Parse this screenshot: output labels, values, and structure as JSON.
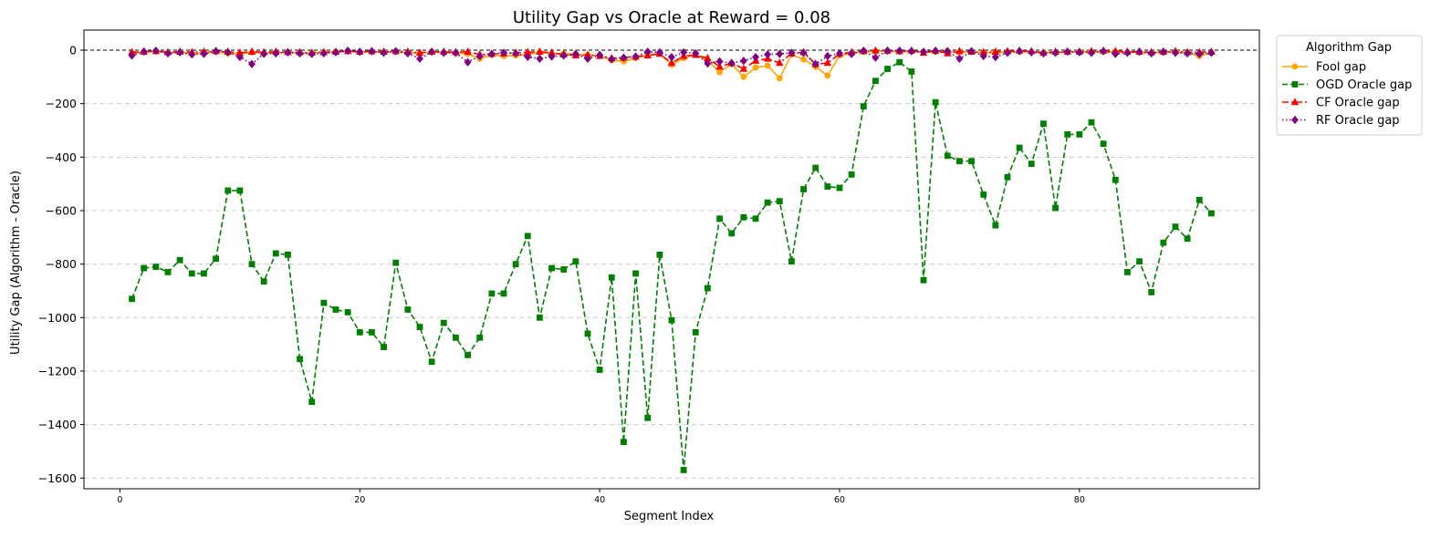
{
  "chart_data": {
    "type": "line",
    "title": "Utility Gap vs Oracle at Reward = 0.08",
    "xlabel": "Segment Index",
    "ylabel": "Utility Gap (Algorithm - Oracle)",
    "xlim": [
      -3,
      95
    ],
    "ylim": [
      -1640,
      75
    ],
    "xticks": [
      0,
      20,
      40,
      60,
      80
    ],
    "yticks": [
      0,
      -200,
      -400,
      -600,
      -800,
      -1000,
      -1200,
      -1400,
      -1600
    ],
    "grid": "horizontal dashed",
    "reference_line": 0,
    "legend": {
      "title": "Algorithm Gap",
      "placement": "outside-right"
    },
    "x": [
      1,
      2,
      3,
      4,
      5,
      6,
      7,
      8,
      9,
      10,
      11,
      12,
      13,
      14,
      15,
      16,
      17,
      18,
      19,
      20,
      21,
      22,
      23,
      24,
      25,
      26,
      27,
      28,
      29,
      30,
      31,
      32,
      33,
      34,
      35,
      36,
      37,
      38,
      39,
      40,
      41,
      42,
      43,
      44,
      45,
      46,
      47,
      48,
      49,
      50,
      51,
      52,
      53,
      54,
      55,
      56,
      57,
      58,
      59,
      60,
      61,
      62,
      63,
      64,
      65,
      66,
      67,
      68,
      69,
      70,
      71,
      72,
      73,
      74,
      75,
      76,
      77,
      78,
      79,
      80,
      81,
      82,
      83,
      84,
      85,
      86,
      87,
      88,
      89,
      90,
      91
    ],
    "series": [
      {
        "name": "Fool gap",
        "color": "#FFA500",
        "dash": "solid",
        "marker": "circle",
        "values": [
          -12,
          -6,
          -4,
          -10,
          -8,
          -14,
          -10,
          -6,
          -12,
          -14,
          -8,
          -12,
          -10,
          -8,
          -12,
          -10,
          -8,
          -6,
          -4,
          -8,
          -6,
          -8,
          -6,
          -10,
          -12,
          -6,
          -8,
          -10,
          -14,
          -32,
          -18,
          -22,
          -20,
          -16,
          -8,
          -14,
          -12,
          -16,
          -18,
          -20,
          -38,
          -42,
          -30,
          -18,
          -12,
          -55,
          -30,
          -16,
          -40,
          -82,
          -52,
          -100,
          -65,
          -58,
          -105,
          -16,
          -35,
          -62,
          -95,
          -20,
          -12,
          -6,
          -4,
          -4,
          -6,
          -4,
          -8,
          -6,
          -4,
          -8,
          -6,
          -10,
          -10,
          -6,
          -6,
          -6,
          -8,
          -10,
          -6,
          -6,
          -6,
          -6,
          -6,
          -8,
          -8,
          -10,
          -8,
          -6,
          -10,
          -22,
          -10
        ]
      },
      {
        "name": "OGD Oracle gap",
        "color": "#008000",
        "dash": "dashed",
        "marker": "square",
        "values": [
          -930,
          -815,
          -810,
          -830,
          -785,
          -835,
          -835,
          -780,
          -525,
          -525,
          -800,
          -865,
          -760,
          -765,
          -1155,
          -1315,
          -945,
          -970,
          -980,
          -1055,
          -1055,
          -1110,
          -795,
          -970,
          -1035,
          -1165,
          -1020,
          -1075,
          -1140,
          -1075,
          -910,
          -910,
          -800,
          -695,
          -1000,
          -815,
          -820,
          -790,
          -1060,
          -1195,
          -850,
          -1465,
          -835,
          -1375,
          -765,
          -1010,
          -1570,
          -1055,
          -890,
          -630,
          -685,
          -625,
          -630,
          -570,
          -565,
          -790,
          -520,
          -440,
          -510,
          -515,
          -465,
          -210,
          -115,
          -70,
          -45,
          -80,
          -860,
          -195,
          -395,
          -415,
          -415,
          -540,
          -655,
          -475,
          -365,
          -425,
          -275,
          -590,
          -315,
          -315,
          -270,
          -350,
          -485,
          -830,
          -790,
          -905,
          -720,
          -660,
          -705,
          -560,
          -610
        ]
      },
      {
        "name": "CF Oracle gap",
        "color": "#FF0000",
        "dash": "dashdot",
        "marker": "triangle",
        "values": [
          -8,
          -6,
          -4,
          -8,
          -6,
          -8,
          -6,
          -4,
          -6,
          -10,
          -6,
          -8,
          -6,
          -8,
          -8,
          -10,
          -8,
          -6,
          -4,
          -6,
          -4,
          -6,
          -4,
          -6,
          -10,
          -6,
          -6,
          -8,
          -6,
          -16,
          -14,
          -12,
          -10,
          -8,
          -6,
          -10,
          -16,
          -20,
          -18,
          -22,
          -30,
          -28,
          -24,
          -20,
          -14,
          -48,
          -22,
          -18,
          -30,
          -62,
          -48,
          -70,
          -40,
          -32,
          -48,
          -12,
          -8,
          -52,
          -48,
          -14,
          -8,
          -4,
          -2,
          -2,
          -4,
          -2,
          -10,
          -2,
          -12,
          -4,
          -6,
          -8,
          -6,
          -4,
          -2,
          -4,
          -10,
          -6,
          -6,
          -6,
          -4,
          -2,
          -4,
          -6,
          -6,
          -8,
          -6,
          -4,
          -8,
          -8,
          -6
        ]
      },
      {
        "name": "RF Oracle gap",
        "color": "#800080",
        "dash": "dotted",
        "marker": "diamond",
        "values": [
          -20,
          -5,
          -2,
          -12,
          -8,
          -16,
          -14,
          -4,
          -8,
          -26,
          -52,
          -14,
          -12,
          -8,
          -12,
          -14,
          -12,
          -8,
          -2,
          -6,
          -4,
          -10,
          -4,
          -12,
          -32,
          -6,
          -10,
          -10,
          -45,
          -22,
          -14,
          -10,
          -12,
          -25,
          -32,
          -24,
          -20,
          -14,
          -32,
          -18,
          -34,
          -28,
          -24,
          -6,
          -8,
          -26,
          -8,
          -12,
          -50,
          -42,
          -48,
          -40,
          -26,
          -16,
          -14,
          -10,
          -10,
          -52,
          -22,
          -12,
          -14,
          -2,
          -28,
          -2,
          -2,
          -4,
          -6,
          -2,
          -4,
          -32,
          -4,
          -22,
          -26,
          -10,
          -4,
          -8,
          -12,
          -10,
          -6,
          -8,
          -10,
          -4,
          -14,
          -10,
          -6,
          -12,
          -6,
          -10,
          -12,
          -14,
          -10
        ]
      }
    ]
  }
}
